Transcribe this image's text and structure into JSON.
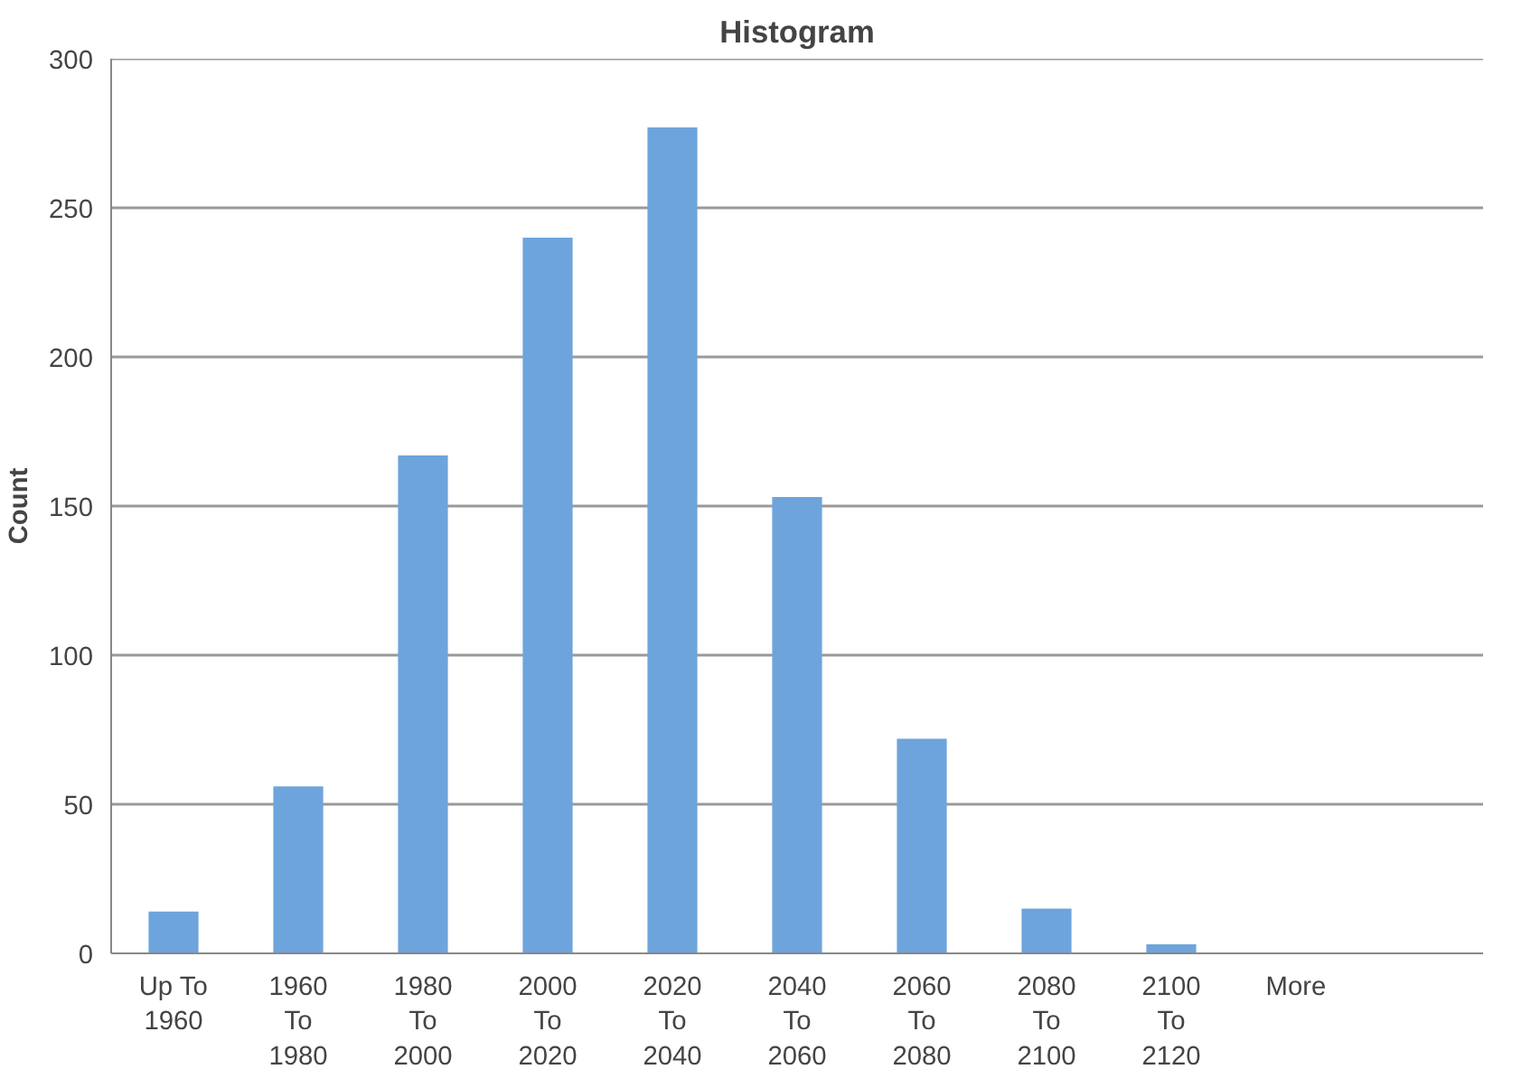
{
  "chart_data": {
    "type": "bar",
    "title": "Histogram",
    "ylabel": "Count",
    "categories": [
      "Up To 1960",
      "1960 To 1980",
      "1980 To 2000",
      "2000 To 2020",
      "2020 To 2040",
      "2040 To 2060",
      "2060 To 2080",
      "2080 To 2100",
      "2100 To 2120",
      "More",
      null
    ],
    "values": [
      14,
      56,
      167,
      240,
      277,
      153,
      72,
      15,
      3,
      0,
      null
    ],
    "color": "#6ea4dc",
    "ylim": [
      0,
      300
    ],
    "yticks": [
      0,
      50,
      100,
      150,
      200,
      250,
      300
    ],
    "grid": "y"
  }
}
